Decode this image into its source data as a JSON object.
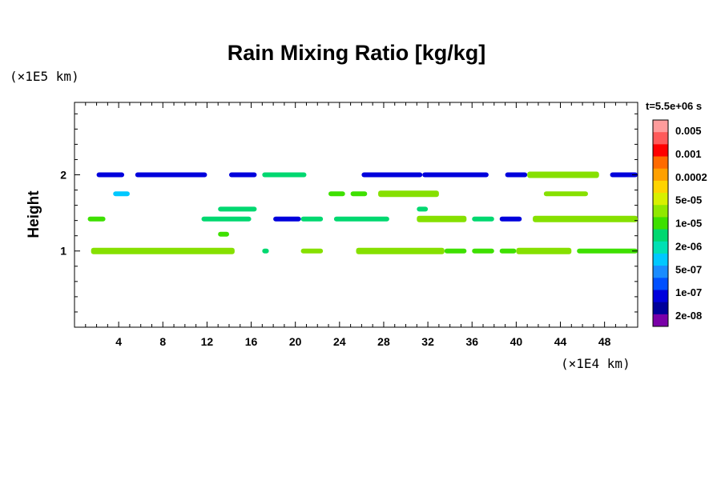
{
  "chart_data": {
    "type": "heatmap",
    "title": "Rain Mixing Ratio [kg/kg]",
    "ylabel": "Height",
    "xlabel": "",
    "x_unit_label": "(×1E4 km)",
    "y_unit_label": "(×1E5 km)",
    "time_label": "t=5.5e+06 s",
    "xlim": [
      0,
      51
    ],
    "ylim": [
      0,
      2.95
    ],
    "x_ticks": [
      4,
      8,
      12,
      16,
      20,
      24,
      28,
      32,
      36,
      40,
      44,
      48
    ],
    "y_ticks": [
      1,
      2
    ],
    "colorbar": {
      "labels": [
        "0.005",
        "0.001",
        "0.0002",
        "5e-05",
        "1e-05",
        "2e-06",
        "5e-07",
        "1e-07",
        "2e-08"
      ],
      "colors": [
        "#ff9c9c",
        "#ff5a5a",
        "#ff0000",
        "#ff6a00",
        "#ffa000",
        "#ffd400",
        "#d8f000",
        "#90e800",
        "#3ee000",
        "#00d870",
        "#00e0b4",
        "#00c8ff",
        "#1a8cff",
        "#0050ff",
        "#0000dc",
        "#00009a",
        "#7a00a8"
      ]
    },
    "series": [
      {
        "y": 2.0,
        "segments": [
          {
            "x0": 2.0,
            "x1": 4.5,
            "v": "1e-07"
          },
          {
            "x0": 5.5,
            "x1": 12.0,
            "v": "1e-07"
          },
          {
            "x0": 14.0,
            "x1": 16.5,
            "v": "1e-07"
          },
          {
            "x0": 17.0,
            "x1": 21.0,
            "v": "2e-06"
          },
          {
            "x0": 26.0,
            "x1": 31.5,
            "v": "1e-07"
          },
          {
            "x0": 31.5,
            "x1": 37.5,
            "v": "1e-07"
          },
          {
            "x0": 39.0,
            "x1": 41.0,
            "v": "1e-07"
          },
          {
            "x0": 41.0,
            "x1": 47.5,
            "v": "5e-05"
          },
          {
            "x0": 48.5,
            "x1": 51.0,
            "v": "1e-07"
          }
        ]
      },
      {
        "y": 1.75,
        "segments": [
          {
            "x0": 3.5,
            "x1": 5.0,
            "v": "5e-07"
          },
          {
            "x0": 23.0,
            "x1": 24.5,
            "v": "1e-05"
          },
          {
            "x0": 25.0,
            "x1": 26.5,
            "v": "1e-05"
          },
          {
            "x0": 27.5,
            "x1": 33.0,
            "v": "5e-05"
          },
          {
            "x0": 42.5,
            "x1": 46.5,
            "v": "5e-05"
          }
        ]
      },
      {
        "y": 1.55,
        "segments": [
          {
            "x0": 13.0,
            "x1": 16.5,
            "v": "2e-06"
          },
          {
            "x0": 31.0,
            "x1": 32.0,
            "v": "2e-06"
          }
        ]
      },
      {
        "y": 1.42,
        "segments": [
          {
            "x0": 1.2,
            "x1": 2.8,
            "v": "1e-05"
          },
          {
            "x0": 11.5,
            "x1": 16.0,
            "v": "2e-06"
          },
          {
            "x0": 18.0,
            "x1": 20.5,
            "v": "1e-07"
          },
          {
            "x0": 20.5,
            "x1": 22.5,
            "v": "2e-06"
          },
          {
            "x0": 23.5,
            "x1": 28.5,
            "v": "2e-06"
          },
          {
            "x0": 31.0,
            "x1": 35.5,
            "v": "5e-05"
          },
          {
            "x0": 36.0,
            "x1": 38.0,
            "v": "2e-06"
          },
          {
            "x0": 38.5,
            "x1": 40.5,
            "v": "1e-07"
          },
          {
            "x0": 41.5,
            "x1": 51.0,
            "v": "5e-05"
          }
        ]
      },
      {
        "y": 1.22,
        "segments": [
          {
            "x0": 13.0,
            "x1": 14.0,
            "v": "1e-05"
          }
        ]
      },
      {
        "y": 1.0,
        "segments": [
          {
            "x0": 1.5,
            "x1": 14.5,
            "v": "5e-05"
          },
          {
            "x0": 17.0,
            "x1": 17.6,
            "v": "2e-06"
          },
          {
            "x0": 20.5,
            "x1": 22.5,
            "v": "5e-05"
          },
          {
            "x0": 25.5,
            "x1": 33.5,
            "v": "5e-05"
          },
          {
            "x0": 33.5,
            "x1": 35.5,
            "v": "1e-05"
          },
          {
            "x0": 36.0,
            "x1": 38.0,
            "v": "1e-05"
          },
          {
            "x0": 38.5,
            "x1": 40.0,
            "v": "1e-05"
          },
          {
            "x0": 40.0,
            "x1": 45.0,
            "v": "5e-05"
          },
          {
            "x0": 45.5,
            "x1": 51.0,
            "v": "1e-05"
          }
        ]
      }
    ]
  }
}
